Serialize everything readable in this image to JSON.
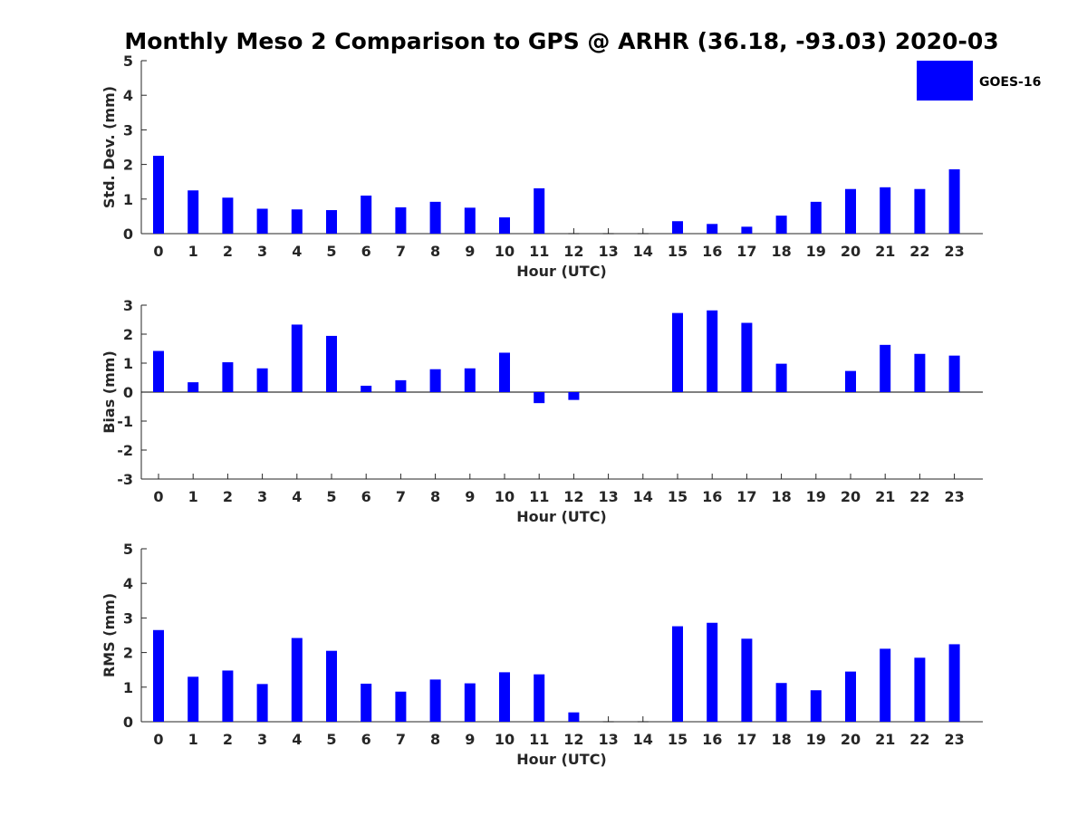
{
  "title": "Monthly Meso 2 Comparison to GPS @ ARHR (36.18, -93.03) 2020-03",
  "legend": {
    "label": "GOES-16",
    "color": "#0000ff"
  },
  "chart_data": [
    {
      "type": "bar",
      "ylabel": "Std. Dev. (mm)",
      "xlabel": "Hour (UTC)",
      "ylim": [
        0,
        5
      ],
      "yticks": [
        0,
        1,
        2,
        3,
        4,
        5
      ],
      "categories": [
        "0",
        "1",
        "2",
        "3",
        "4",
        "5",
        "6",
        "7",
        "8",
        "9",
        "10",
        "11",
        "12",
        "13",
        "14",
        "15",
        "16",
        "17",
        "18",
        "19",
        "20",
        "21",
        "22",
        "23"
      ],
      "series": [
        {
          "name": "GOES-16",
          "color": "#0000ff",
          "values": [
            2.25,
            1.25,
            1.04,
            0.72,
            0.7,
            0.68,
            1.1,
            0.76,
            0.92,
            0.75,
            0.47,
            1.31,
            0,
            0,
            0,
            0.36,
            0.28,
            0.2,
            0.52,
            0.92,
            1.29,
            1.34,
            1.29,
            1.86
          ]
        }
      ]
    },
    {
      "type": "bar",
      "ylabel": "Bias (mm)",
      "xlabel": "Hour (UTC)",
      "ylim": [
        -3,
        3
      ],
      "yticks": [
        -3,
        -2,
        -1,
        0,
        1,
        2,
        3
      ],
      "categories": [
        "0",
        "1",
        "2",
        "3",
        "4",
        "5",
        "6",
        "7",
        "8",
        "9",
        "10",
        "11",
        "12",
        "13",
        "14",
        "15",
        "16",
        "17",
        "18",
        "19",
        "20",
        "21",
        "22",
        "23"
      ],
      "series": [
        {
          "name": "GOES-16",
          "color": "#0000ff",
          "values": [
            1.42,
            0.34,
            1.03,
            0.82,
            2.33,
            1.94,
            0.22,
            0.41,
            0.79,
            0.82,
            1.36,
            -0.38,
            -0.27,
            0,
            0,
            2.73,
            2.82,
            2.39,
            0.98,
            0.0,
            0.73,
            1.63,
            1.32,
            1.26
          ]
        }
      ]
    },
    {
      "type": "bar",
      "ylabel": "RMS (mm)",
      "xlabel": "Hour (UTC)",
      "ylim": [
        0,
        5
      ],
      "yticks": [
        0,
        1,
        2,
        3,
        4,
        5
      ],
      "categories": [
        "0",
        "1",
        "2",
        "3",
        "4",
        "5",
        "6",
        "7",
        "8",
        "9",
        "10",
        "11",
        "12",
        "13",
        "14",
        "15",
        "16",
        "17",
        "18",
        "19",
        "20",
        "21",
        "22",
        "23"
      ],
      "series": [
        {
          "name": "GOES-16",
          "color": "#0000ff",
          "values": [
            2.65,
            1.3,
            1.48,
            1.09,
            2.42,
            2.05,
            1.1,
            0.87,
            1.22,
            1.11,
            1.43,
            1.37,
            0.27,
            0,
            0,
            2.76,
            2.86,
            2.4,
            1.12,
            0.91,
            1.45,
            2.11,
            1.85,
            2.24
          ]
        }
      ]
    }
  ]
}
